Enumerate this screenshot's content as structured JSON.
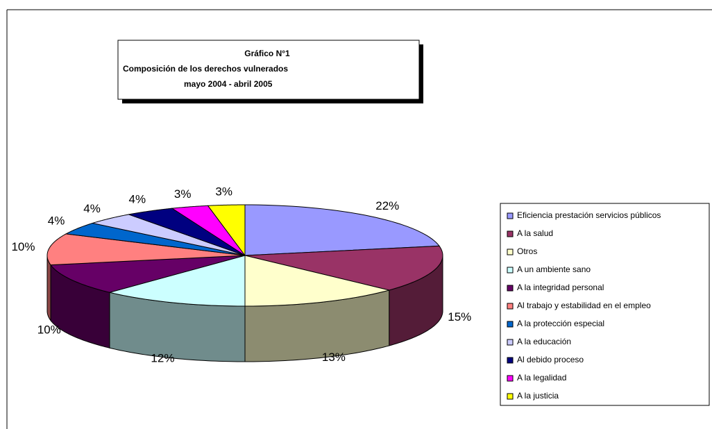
{
  "chart_data": {
    "type": "pie3d",
    "title": [
      "Gráfico N°1",
      "Composición de los derechos vulnerados",
      "mayo 2004 - abril 2005"
    ],
    "categories": [
      "Eficiencia prestación servicios públicos",
      "A la salud",
      "Otros",
      "A un ambiente sano",
      "A la integridad personal",
      "Al trabajo y estabilidad en el empleo",
      "A la protección especial",
      "A la educación",
      "Al debido proceso",
      "A la legalidad",
      "A la justicia"
    ],
    "values": [
      22,
      15,
      13,
      12,
      10,
      10,
      4,
      4,
      4,
      3,
      3
    ],
    "value_labels": [
      "22%",
      "15%",
      "13%",
      "12%",
      "10%",
      "10%",
      "4%",
      "4%",
      "4%",
      "3%",
      "3%"
    ],
    "colors": [
      "#9999ff",
      "#993366",
      "#ffffcc",
      "#ccffff",
      "#660066",
      "#ff8080",
      "#0066cc",
      "#ccccff",
      "#000080",
      "#ff00ff",
      "#ffff00"
    ],
    "legend": "right"
  }
}
